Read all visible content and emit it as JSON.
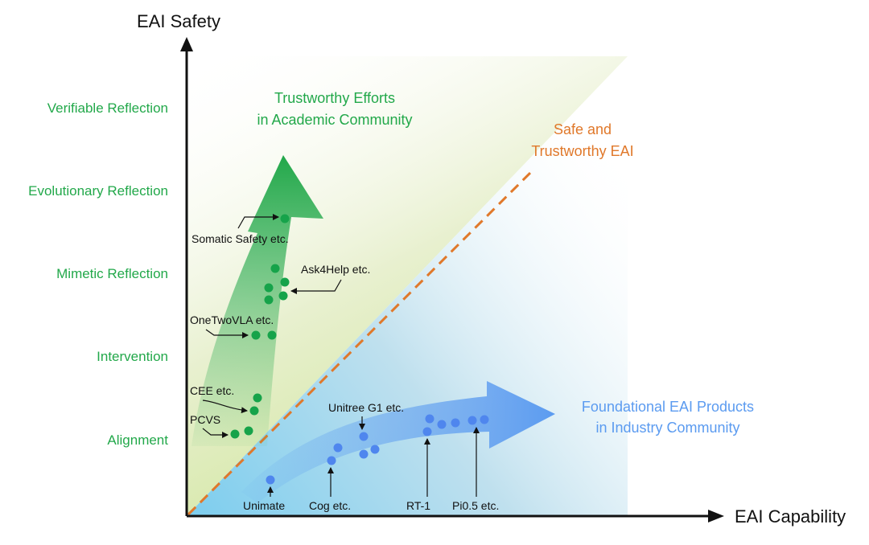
{
  "axes": {
    "y_title": "EAI Safety",
    "x_title": "EAI Capability"
  },
  "safety_levels": [
    {
      "label": "Verifiable Reflection"
    },
    {
      "label": "Evolutionary Reflection"
    },
    {
      "label": "Mimetic Reflection"
    },
    {
      "label": "Intervention"
    },
    {
      "label": "Alignment"
    }
  ],
  "regions": {
    "academic": {
      "line1": "Trustworthy Efforts",
      "line2": "in Academic Community"
    },
    "industry": {
      "line1": "Foundational EAI Products",
      "line2": "in Industry Community"
    },
    "diagonal": {
      "line1": "Safe and",
      "line2": "Trustworthy EAI"
    }
  },
  "academic_items": [
    {
      "label": "Somatic Safety etc."
    },
    {
      "label": "Ask4Help etc."
    },
    {
      "label": "OneTwoVLA etc."
    },
    {
      "label": "CEE etc."
    },
    {
      "label": "PCVS"
    }
  ],
  "industry_items": [
    {
      "label": "Unitree G1 etc."
    },
    {
      "label": "Unimate"
    },
    {
      "label": "Cog etc."
    },
    {
      "label": "RT-1"
    },
    {
      "label": "Pi0.5 etc."
    }
  ],
  "colors": {
    "academic": "#22a84a",
    "industry": "#5b9bf0",
    "diagonal": "#e0782a",
    "axis": "#111111",
    "point_green": "#16a34a",
    "point_blue": "#4f86ee"
  }
}
